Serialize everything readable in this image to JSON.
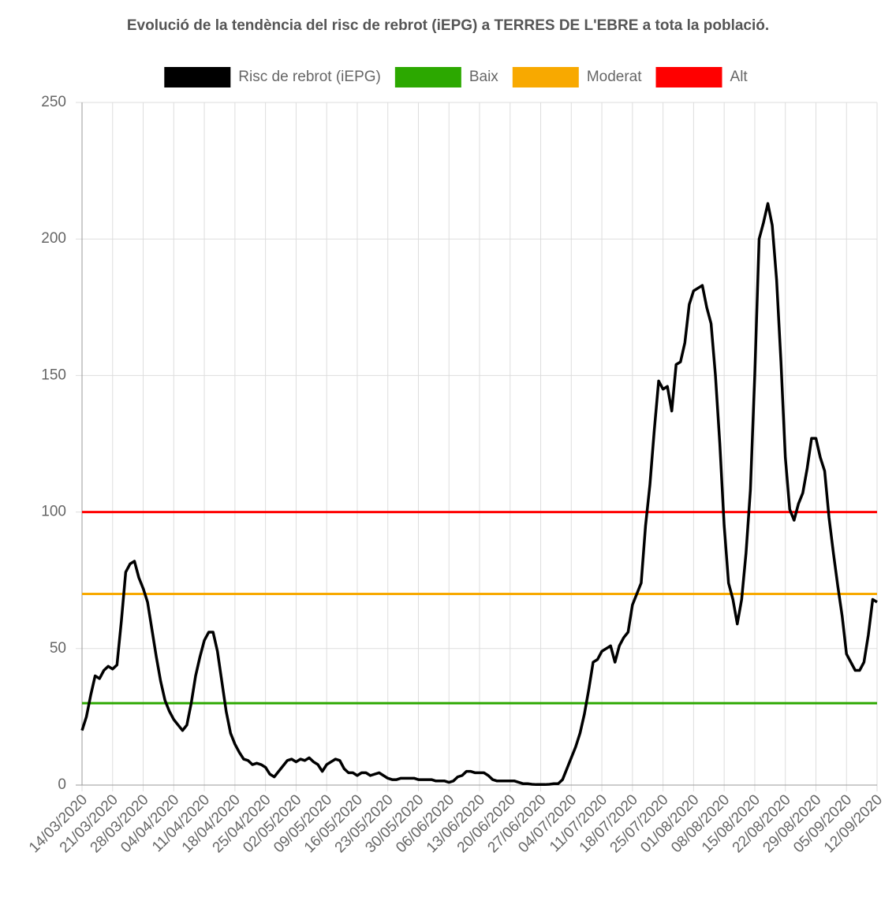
{
  "chart_data": {
    "type": "line",
    "title": "Evolució de la tendència del risc de rebrot (iEPG) a TERRES DE L'EBRE a tota la població.",
    "categories": [
      "14/03/2020",
      null,
      null,
      null,
      null,
      null,
      null,
      "21/03/2020",
      null,
      null,
      null,
      null,
      null,
      null,
      "28/03/2020",
      null,
      null,
      null,
      null,
      null,
      null,
      "04/04/2020",
      null,
      null,
      null,
      null,
      null,
      null,
      "11/04/2020",
      null,
      null,
      null,
      null,
      null,
      null,
      "18/04/2020",
      null,
      null,
      null,
      null,
      null,
      null,
      "25/04/2020",
      null,
      null,
      null,
      null,
      null,
      null,
      "02/05/2020",
      null,
      null,
      null,
      null,
      null,
      null,
      "09/05/2020",
      null,
      null,
      null,
      null,
      null,
      null,
      "16/05/2020",
      null,
      null,
      null,
      null,
      null,
      null,
      "23/05/2020",
      null,
      null,
      null,
      null,
      null,
      null,
      "30/05/2020",
      null,
      null,
      null,
      null,
      null,
      null,
      "06/06/2020",
      null,
      null,
      null,
      null,
      null,
      null,
      "13/06/2020",
      null,
      null,
      null,
      null,
      null,
      null,
      "20/06/2020",
      null,
      null,
      null,
      null,
      null,
      null,
      "27/06/2020",
      null,
      null,
      null,
      null,
      null,
      null,
      "04/07/2020",
      null,
      null,
      null,
      null,
      null,
      null,
      "11/07/2020",
      null,
      null,
      null,
      null,
      null,
      null,
      "18/07/2020",
      null,
      null,
      null,
      null,
      null,
      null,
      "25/07/2020",
      null,
      null,
      null,
      null,
      null,
      null,
      "01/08/2020",
      null,
      null,
      null,
      null,
      null,
      null,
      "08/08/2020",
      null,
      null,
      null,
      null,
      null,
      null,
      "15/08/2020",
      null,
      null,
      null,
      null,
      null,
      null,
      "22/08/2020",
      null,
      null,
      null,
      null,
      null,
      null,
      "29/08/2020",
      null,
      null,
      null,
      null,
      null,
      null,
      "05/09/2020",
      null,
      null,
      null,
      null,
      null,
      null,
      "12/09/2020"
    ],
    "series": [
      {
        "name": "Risc de rebrot (iEPG)",
        "color": "#000000",
        "values": [
          20,
          25,
          33,
          40,
          39,
          42,
          43.5,
          42.5,
          44,
          60,
          78,
          81,
          82,
          76,
          72,
          67,
          57,
          47,
          38,
          31,
          27,
          24,
          22,
          20,
          22,
          30,
          40,
          47,
          53,
          56,
          56,
          49,
          38,
          27,
          19,
          15,
          12,
          9.5,
          9,
          7.5,
          8,
          7.5,
          6.5,
          4,
          3,
          5,
          7,
          9,
          9.5,
          8.5,
          9.5,
          9,
          10,
          8.5,
          7.5,
          5,
          7.5,
          8.5,
          9.5,
          9,
          6,
          4.5,
          4.5,
          3.5,
          4.5,
          4.5,
          3.5,
          4,
          4.5,
          3.5,
          2.5,
          2,
          2,
          2.5,
          2.5,
          2.5,
          2.5,
          2,
          2,
          2,
          2,
          1.5,
          1.5,
          1.5,
          1,
          1.5,
          3,
          3.5,
          5,
          5,
          4.5,
          4.5,
          4.5,
          3.5,
          2,
          1.5,
          1.5,
          1.5,
          1.5,
          1.5,
          1,
          0.5,
          0.5,
          0.3,
          0.2,
          0.2,
          0.2,
          0.3,
          0.5,
          0.5,
          2,
          6,
          10,
          14,
          19,
          26,
          35,
          45,
          46,
          49,
          50,
          51,
          45,
          51,
          54,
          56,
          66,
          70,
          74,
          95,
          110,
          130,
          148,
          145,
          146,
          137,
          154,
          155,
          162,
          176,
          181,
          182,
          183,
          175,
          169,
          150,
          125,
          95,
          74,
          68,
          59,
          68,
          85,
          108,
          150,
          200,
          206,
          213,
          205,
          185,
          155,
          120,
          101,
          97,
          103,
          107,
          116,
          127,
          127,
          120,
          115,
          98,
          85,
          73,
          62,
          48,
          45,
          42,
          42,
          45,
          55,
          68,
          67
        ]
      },
      {
        "name": "Baix",
        "color": "#2ca800",
        "values": [
          30,
          30,
          30,
          30,
          30,
          30,
          30,
          30,
          30,
          30,
          30,
          30,
          30,
          30,
          30,
          30,
          30,
          30,
          30,
          30,
          30,
          30,
          30,
          30,
          30,
          30,
          30,
          30,
          30,
          30,
          30,
          30,
          30,
          30,
          30,
          30,
          30,
          30,
          30,
          30,
          30,
          30,
          30,
          30,
          30,
          30,
          30,
          30,
          30,
          30,
          30,
          30,
          30,
          30,
          30,
          30,
          30,
          30,
          30,
          30,
          30,
          30,
          30,
          30,
          30,
          30,
          30,
          30,
          30,
          30,
          30,
          30,
          30,
          30,
          30,
          30,
          30,
          30,
          30,
          30,
          30,
          30,
          30,
          30,
          30,
          30,
          30,
          30,
          30,
          30,
          30,
          30,
          30,
          30,
          30,
          30,
          30,
          30,
          30,
          30,
          30,
          30,
          30,
          30,
          30,
          30,
          30,
          30,
          30,
          30,
          30,
          30,
          30,
          30,
          30,
          30,
          30,
          30,
          30,
          30,
          30,
          30,
          30,
          30,
          30,
          30,
          30,
          30,
          30,
          30,
          30,
          30,
          30,
          30,
          30,
          30,
          30,
          30,
          30,
          30,
          30,
          30,
          30,
          30,
          30,
          30,
          30,
          30,
          30,
          30,
          30,
          30,
          30,
          30,
          30,
          30,
          30,
          30,
          30,
          30,
          30,
          30,
          30,
          30,
          30,
          30,
          30,
          30,
          30,
          30,
          30,
          30,
          30,
          30,
          30,
          30,
          30,
          30,
          30,
          30,
          30,
          30,
          30
        ]
      },
      {
        "name": "Moderat",
        "color": "#f8a900",
        "values": [
          70,
          70,
          70,
          70,
          70,
          70,
          70,
          70,
          70,
          70,
          70,
          70,
          70,
          70,
          70,
          70,
          70,
          70,
          70,
          70,
          70,
          70,
          70,
          70,
          70,
          70,
          70,
          70,
          70,
          70,
          70,
          70,
          70,
          70,
          70,
          70,
          70,
          70,
          70,
          70,
          70,
          70,
          70,
          70,
          70,
          70,
          70,
          70,
          70,
          70,
          70,
          70,
          70,
          70,
          70,
          70,
          70,
          70,
          70,
          70,
          70,
          70,
          70,
          70,
          70,
          70,
          70,
          70,
          70,
          70,
          70,
          70,
          70,
          70,
          70,
          70,
          70,
          70,
          70,
          70,
          70,
          70,
          70,
          70,
          70,
          70,
          70,
          70,
          70,
          70,
          70,
          70,
          70,
          70,
          70,
          70,
          70,
          70,
          70,
          70,
          70,
          70,
          70,
          70,
          70,
          70,
          70,
          70,
          70,
          70,
          70,
          70,
          70,
          70,
          70,
          70,
          70,
          70,
          70,
          70,
          70,
          70,
          70,
          70,
          70,
          70,
          70,
          70,
          70,
          70,
          70,
          70,
          70,
          70,
          70,
          70,
          70,
          70,
          70,
          70,
          70,
          70,
          70,
          70,
          70,
          70,
          70,
          70,
          70,
          70,
          70,
          70,
          70,
          70,
          70,
          70,
          70,
          70,
          70,
          70,
          70,
          70,
          70,
          70,
          70,
          70,
          70,
          70,
          70,
          70,
          70,
          70,
          70,
          70,
          70,
          70,
          70,
          70,
          70,
          70,
          70,
          70,
          70
        ]
      },
      {
        "name": "Alt",
        "color": "#ff0000",
        "values": [
          100,
          100,
          100,
          100,
          100,
          100,
          100,
          100,
          100,
          100,
          100,
          100,
          100,
          100,
          100,
          100,
          100,
          100,
          100,
          100,
          100,
          100,
          100,
          100,
          100,
          100,
          100,
          100,
          100,
          100,
          100,
          100,
          100,
          100,
          100,
          100,
          100,
          100,
          100,
          100,
          100,
          100,
          100,
          100,
          100,
          100,
          100,
          100,
          100,
          100,
          100,
          100,
          100,
          100,
          100,
          100,
          100,
          100,
          100,
          100,
          100,
          100,
          100,
          100,
          100,
          100,
          100,
          100,
          100,
          100,
          100,
          100,
          100,
          100,
          100,
          100,
          100,
          100,
          100,
          100,
          100,
          100,
          100,
          100,
          100,
          100,
          100,
          100,
          100,
          100,
          100,
          100,
          100,
          100,
          100,
          100,
          100,
          100,
          100,
          100,
          100,
          100,
          100,
          100,
          100,
          100,
          100,
          100,
          100,
          100,
          100,
          100,
          100,
          100,
          100,
          100,
          100,
          100,
          100,
          100,
          100,
          100,
          100,
          100,
          100,
          100,
          100,
          100,
          100,
          100,
          100,
          100,
          100,
          100,
          100,
          100,
          100,
          100,
          100,
          100,
          100,
          100,
          100,
          100,
          100,
          100,
          100,
          100,
          100,
          100,
          100,
          100,
          100,
          100,
          100,
          100,
          100,
          100,
          100,
          100,
          100,
          100,
          100,
          100,
          100,
          100,
          100,
          100,
          100,
          100,
          100,
          100,
          100,
          100,
          100,
          100,
          100,
          100,
          100,
          100,
          100,
          100,
          100
        ]
      }
    ],
    "ylim": [
      0,
      250
    ],
    "yticks": [
      0,
      50,
      100,
      150,
      200,
      250
    ],
    "grid": true,
    "legend": "top"
  }
}
